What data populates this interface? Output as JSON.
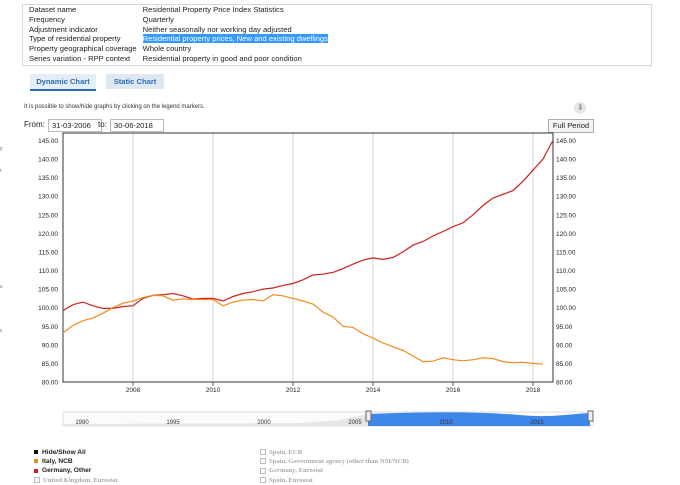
{
  "metadata": [
    {
      "key": "Dataset name",
      "value": "Residential Property Price Index Statistics",
      "highlight": false
    },
    {
      "key": "Frequency",
      "value": "Quarterly",
      "highlight": false
    },
    {
      "key": "Adjustment indicator",
      "value": "Neither seasonally nor working day adjusted",
      "highlight": false
    },
    {
      "key": "Type of residential property",
      "value": "Residential property prices, New and existing dwellings",
      "highlight": true
    },
    {
      "key": "Property geographical coverage",
      "value": "Whole country",
      "highlight": false
    },
    {
      "key": "Series variation - RPP context",
      "value": "Residential property in good and poor condition",
      "highlight": false
    }
  ],
  "tabs": {
    "dynamic": "Dynamic Chart",
    "static": "Static Chart"
  },
  "hint": "It is possible to show/hide graphs by clicking on the legend markers.",
  "range": {
    "from_label": "From:",
    "from_value": "31-03-2006",
    "to_label": "to:",
    "to_value": "30-06-2018",
    "full_period": "Full Period"
  },
  "edge_chars": [
    "y",
    "r",
    "s",
    "c"
  ],
  "chart_data": {
    "type": "line",
    "x_ticks": [
      "2008",
      "2010",
      "2012",
      "2014",
      "2016",
      "2018"
    ],
    "y_ticks": [
      "80.00",
      "85.00",
      "90.00",
      "95.00",
      "100.00",
      "105.00",
      "110.00",
      "115.00",
      "120.00",
      "125.00",
      "130.00",
      "135.00",
      "140.00",
      "145.00"
    ],
    "ylim": [
      80,
      147
    ],
    "xlim": [
      2006.25,
      2018.5
    ],
    "series": [
      {
        "name": "Germany, Other",
        "color": "#cc2222",
        "x": [
          2006.25,
          2006.5,
          2006.75,
          2007.0,
          2007.25,
          2007.5,
          2007.75,
          2008.0,
          2008.25,
          2008.5,
          2008.75,
          2009.0,
          2009.25,
          2009.5,
          2009.75,
          2010.0,
          2010.25,
          2010.5,
          2010.75,
          2011.0,
          2011.25,
          2011.5,
          2011.75,
          2012.0,
          2012.25,
          2012.5,
          2012.75,
          2013.0,
          2013.25,
          2013.5,
          2013.75,
          2014.0,
          2014.25,
          2014.5,
          2014.75,
          2015.0,
          2015.25,
          2015.5,
          2015.75,
          2016.0,
          2016.25,
          2016.5,
          2016.75,
          2017.0,
          2017.25,
          2017.5,
          2017.75,
          2018.0,
          2018.25,
          2018.5
        ],
        "y": [
          99.2,
          100.8,
          101.5,
          100.5,
          99.8,
          99.8,
          100.3,
          100.5,
          102.5,
          103.3,
          103.5,
          103.8,
          103.2,
          102.3,
          102.5,
          102.5,
          101.8,
          103.0,
          103.8,
          104.3,
          105.0,
          105.3,
          106.0,
          106.5,
          107.5,
          108.8,
          109.0,
          109.5,
          110.5,
          111.7,
          112.8,
          113.4,
          113.0,
          113.5,
          115.0,
          116.8,
          117.8,
          119.3,
          120.5,
          121.8,
          122.8,
          125.0,
          127.5,
          129.5,
          130.5,
          131.5,
          134.0,
          137.0,
          140.0,
          145.0
        ]
      },
      {
        "name": "Italy, NCB",
        "color": "#f08a1e",
        "x": [
          2006.25,
          2006.5,
          2006.75,
          2007.0,
          2007.25,
          2007.5,
          2007.75,
          2008.0,
          2008.25,
          2008.5,
          2008.75,
          2009.0,
          2009.25,
          2009.5,
          2009.75,
          2010.0,
          2010.25,
          2010.5,
          2010.75,
          2011.0,
          2011.25,
          2011.5,
          2011.75,
          2012.0,
          2012.25,
          2012.5,
          2012.75,
          2013.0,
          2013.25,
          2013.5,
          2013.75,
          2014.0,
          2014.25,
          2014.5,
          2014.75,
          2015.0,
          2015.25,
          2015.5,
          2015.75,
          2016.0,
          2016.25,
          2016.5,
          2016.75,
          2017.0,
          2017.25,
          2017.5,
          2017.75,
          2018.0,
          2018.25
        ],
        "y": [
          93.2,
          95.2,
          96.5,
          97.2,
          98.5,
          100.0,
          101.2,
          101.8,
          102.7,
          103.3,
          103.2,
          102.0,
          102.4,
          102.2,
          102.2,
          102.2,
          100.5,
          101.5,
          102.0,
          102.2,
          101.8,
          103.5,
          103.2,
          102.5,
          101.8,
          101.0,
          98.8,
          97.5,
          95.0,
          94.7,
          93.0,
          91.8,
          90.5,
          89.5,
          88.5,
          87.0,
          85.5,
          85.6,
          86.5,
          86.0,
          85.7,
          86.0,
          86.5,
          86.3,
          85.5,
          85.2,
          85.3,
          85.0,
          84.8
        ]
      }
    ],
    "navigator_ticks": [
      "1990",
      "1995",
      "2000",
      "2005",
      "2010",
      "2015"
    ],
    "title": "",
    "xlabel": "",
    "ylabel": ""
  },
  "legend": {
    "left": [
      {
        "label": "Hide/Show All",
        "color": "#111111",
        "active": true
      },
      {
        "label": "Italy, NCB",
        "color": "#f08a1e",
        "active": true
      },
      {
        "label": "Germany, Other",
        "color": "#cc2222",
        "active": true
      },
      {
        "label": "United Kingdom, Eurostat",
        "color": "#bbbbbb",
        "active": false
      }
    ],
    "right": [
      {
        "label": "Spain, ECB",
        "active": false
      },
      {
        "label": "Spain, Government agency (other than NSI/NCB)",
        "active": false
      },
      {
        "label": "Germany, Eurostat",
        "active": false
      },
      {
        "label": "Spain, Eurostat",
        "active": false
      }
    ]
  }
}
